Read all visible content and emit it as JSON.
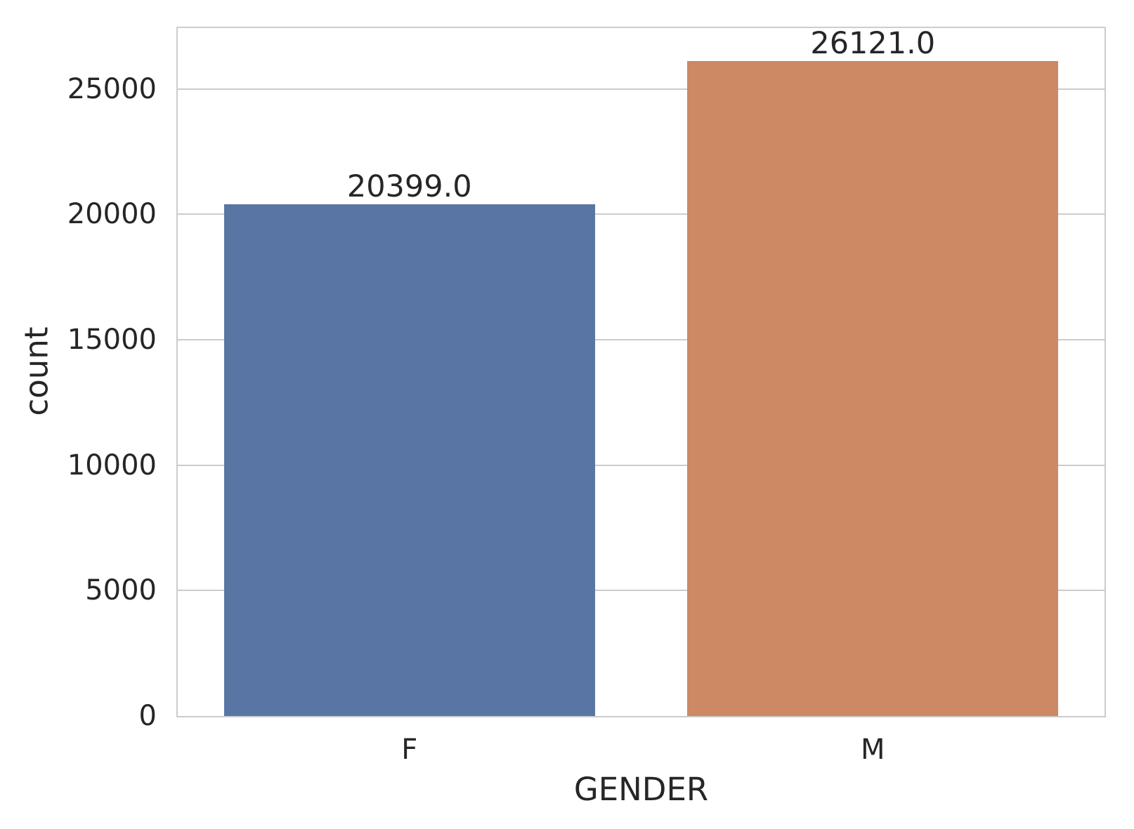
{
  "chart_data": {
    "type": "bar",
    "title": "",
    "xlabel": "GENDER",
    "ylabel": "count",
    "categories": [
      "F",
      "M"
    ],
    "values": [
      20399.0,
      26121.0
    ],
    "bar_value_labels": [
      "20399.0",
      "26121.0"
    ],
    "bar_colors": [
      "#5975a4",
      "#cc8963"
    ],
    "bar_width_fraction": 0.8,
    "ylim": [
      0,
      27427
    ],
    "yticks": [
      0,
      5000,
      10000,
      15000,
      20000,
      25000
    ],
    "ytick_labels": [
      "0",
      "5000",
      "10000",
      "15000",
      "20000",
      "25000"
    ],
    "grid": true,
    "legend": false,
    "style": {
      "background_color": "#ffffff",
      "grid_color": "#cccccc",
      "spine_color": "#cccccc",
      "text_color": "#262626"
    }
  }
}
